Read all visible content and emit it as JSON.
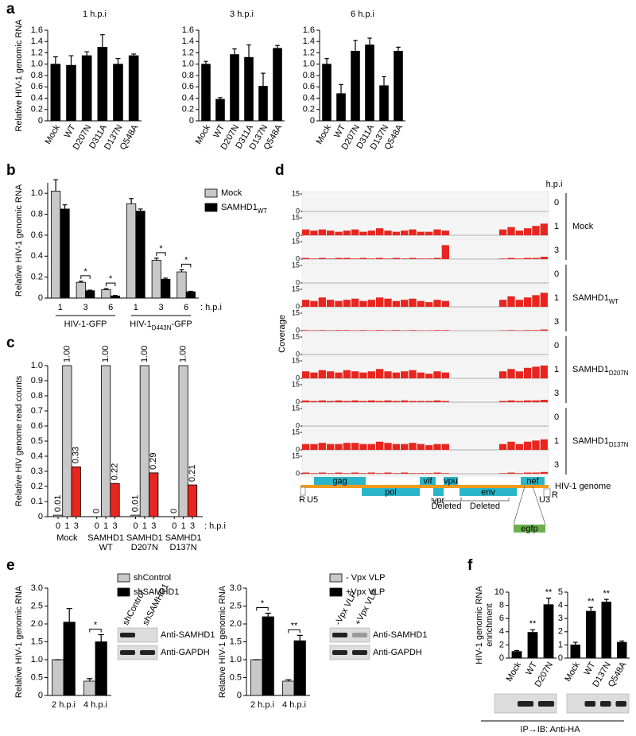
{
  "figure": {
    "panels": [
      "a",
      "b",
      "c",
      "d",
      "e",
      "f"
    ],
    "blot_caption": "IP→IB: Anti-HA"
  },
  "chart_data": [
    {
      "type": "bar",
      "title": "1 h.p.i",
      "ylabel": "Relative HIV-1 genomic RNA",
      "categories": [
        "Mock",
        "WT",
        "D207N",
        "D311A",
        "D137N",
        "Q548A"
      ],
      "values": [
        1.0,
        0.98,
        1.15,
        1.3,
        1.0,
        1.15
      ],
      "errors": [
        0.13,
        0.17,
        0.07,
        0.22,
        0.1,
        0.03
      ],
      "color": "#000000",
      "ylim": [
        0,
        1.6
      ],
      "yticks": [
        0,
        0.2,
        0.4,
        0.6,
        0.8,
        {
          "value": 1,
          "label": "1.0"
        },
        1.2,
        1.4,
        1.6
      ]
    },
    {
      "type": "bar",
      "title": "3 h.p.i",
      "categories": [
        "Mock",
        "WT",
        "D207N",
        "D311A",
        "D137N",
        "Q548A"
      ],
      "values": [
        1.0,
        0.38,
        1.17,
        1.12,
        0.61,
        1.28
      ],
      "errors": [
        0.05,
        0.03,
        0.1,
        0.22,
        0.23,
        0.05
      ],
      "color": "#000000",
      "ylim": [
        0,
        1.6
      ],
      "yticks": [
        0,
        0.2,
        0.4,
        0.6,
        0.8,
        {
          "value": 1,
          "label": "1.0"
        },
        1.2,
        1.4,
        1.6
      ]
    },
    {
      "type": "bar",
      "title": "6 h.p.i",
      "categories": [
        "Mock",
        "WT",
        "D207N",
        "D311A",
        "D137N",
        "Q548A"
      ],
      "values": [
        1.0,
        0.48,
        1.23,
        1.34,
        0.62,
        1.23
      ],
      "errors": [
        0.1,
        0.16,
        0.19,
        0.12,
        0.16,
        0.07
      ],
      "color": "#000000",
      "ylim": [
        0,
        1.6
      ],
      "yticks": [
        0,
        0.2,
        0.4,
        0.6,
        0.8,
        {
          "value": 1,
          "label": "1.0"
        },
        1.2,
        1.4,
        1.6
      ]
    },
    {
      "type": "grouped_bar",
      "ylabel": "Relative HIV-1 genomic RNA",
      "categories": [
        "1",
        "3",
        "6",
        "1",
        "3",
        "6"
      ],
      "x_suffix": ": h.p.i",
      "groups": [
        "HIV-1-GFP",
        {
          "text": "HIV-1",
          "sub": "D443N",
          "tail": "-GFP"
        }
      ],
      "series": [
        {
          "name": "Mock",
          "color": "#c8c8c8",
          "values": [
            1.02,
            0.15,
            0.08,
            0.9,
            0.36,
            0.25
          ],
          "errors": [
            0.11,
            0.01,
            0.01,
            0.05,
            0.02,
            0.02
          ]
        },
        {
          "name": {
            "text": "SAMHD1",
            "sub": "WT"
          },
          "color": "#000000",
          "values": [
            0.85,
            0.07,
            0.02,
            0.83,
            0.18,
            0.06
          ],
          "errors": [
            0.04,
            0.005,
            0.005,
            0.02,
            0.01,
            0.005
          ]
        }
      ],
      "significance": [
        null,
        "*",
        "*",
        null,
        "*",
        "*"
      ],
      "ylim": [
        0,
        1.1
      ],
      "yticks": [
        0,
        0.2,
        0.4,
        0.6,
        0.8,
        {
          "value": 1,
          "label": "1.0"
        }
      ]
    },
    {
      "type": "bar",
      "ylabel": "Relative HIV genome read counts",
      "categories": [
        "0",
        "1",
        "3",
        "0",
        "1",
        "3",
        "0",
        "1",
        "3",
        "0",
        "1",
        "3"
      ],
      "x_suffix": ": h.p.i",
      "groups": [
        [
          "Mock"
        ],
        [
          "SAMHD1",
          "WT"
        ],
        [
          "SAMHD1",
          "D207N"
        ],
        [
          "SAMHD1",
          "D137N"
        ]
      ],
      "values": [
        0.01,
        1,
        0.33,
        0,
        1,
        0.22,
        0.01,
        1,
        0.29,
        0,
        1,
        0.21
      ],
      "value_labels": [
        "0.01",
        "1.00",
        "0.33",
        "0",
        "1.00",
        "0.22",
        "0.01",
        "1.00",
        "0.29",
        "0",
        "1.00",
        "0.21"
      ],
      "colors": [
        "#c8c8c8",
        "#c8c8c8",
        "#e8251f",
        "#c8c8c8",
        "#c8c8c8",
        "#e8251f",
        "#c8c8c8",
        "#c8c8c8",
        "#e8251f",
        "#c8c8c8",
        "#c8c8c8",
        "#e8251f"
      ],
      "ylim": [
        0,
        1
      ],
      "yticks": [
        0,
        0.1,
        0.2,
        0.3,
        0.4,
        0.5,
        0.6,
        0.7,
        0.8,
        0.9,
        {
          "value": 1,
          "label": "1.0"
        }
      ]
    },
    {
      "type": "coverage",
      "ylabel": "Coverage",
      "hpi_header": "h.p.i",
      "color": "#e8251f",
      "ylim": [
        0,
        15
      ],
      "yticks": [
        0,
        15
      ],
      "track_groups": [
        "Mock",
        {
          "text": "SAMHD1",
          "sub": "WT"
        },
        {
          "text": "SAMHD1",
          "sub": "D207N"
        },
        {
          "text": "SAMHD1",
          "sub": "D137N"
        }
      ],
      "track_labels": [
        "0",
        "1",
        "3",
        "0",
        "1",
        "3",
        "0",
        "1",
        "3",
        "0",
        "1",
        "3"
      ],
      "tracks": [
        [
          0,
          0,
          0,
          0,
          0,
          0,
          0,
          0,
          0,
          0,
          0,
          0,
          0,
          0,
          0,
          0,
          0,
          0,
          0,
          0,
          0,
          0,
          0,
          0,
          0,
          0,
          0,
          0,
          0,
          0
        ],
        [
          5,
          4,
          5,
          4,
          3,
          4,
          5,
          3,
          4,
          6,
          4,
          3,
          4,
          5,
          3,
          3,
          5,
          4,
          0,
          0,
          0,
          0,
          0,
          0,
          5,
          7,
          4,
          6,
          8,
          10
        ],
        [
          1,
          0.5,
          1,
          0.5,
          1,
          1,
          0.5,
          1,
          0.5,
          1,
          0.5,
          1,
          0.5,
          1,
          0.5,
          0.5,
          1,
          12,
          0,
          0,
          0,
          0,
          0,
          0,
          0.5,
          1,
          0.5,
          1,
          1,
          2
        ],
        [
          0,
          0,
          0,
          0,
          0,
          0,
          0,
          0,
          0,
          0,
          0,
          0,
          0,
          0,
          0,
          0,
          0,
          0,
          0,
          0,
          0,
          0,
          0,
          0,
          0,
          0,
          0,
          0,
          0,
          0
        ],
        [
          6,
          5,
          8,
          6,
          5,
          6,
          7,
          5,
          6,
          8,
          7,
          5,
          6,
          7,
          5,
          4,
          6,
          5,
          0,
          0,
          0,
          0,
          0,
          0,
          6,
          9,
          6,
          8,
          10,
          12
        ],
        [
          0.5,
          0.3,
          0.5,
          0.3,
          0.5,
          0.5,
          0.3,
          0.5,
          0.3,
          0.5,
          0.3,
          0.5,
          0.3,
          0.5,
          0.3,
          0.3,
          0.5,
          0.5,
          0,
          0,
          0,
          0,
          0,
          0,
          0.3,
          0.5,
          0.3,
          0.5,
          0.5,
          1
        ],
        [
          0,
          0,
          0,
          0,
          0,
          0,
          0,
          0,
          0,
          0,
          0,
          0,
          0,
          0,
          0,
          0,
          0,
          0,
          0,
          0,
          0,
          0,
          0,
          0,
          0,
          0,
          0,
          0,
          0,
          0
        ],
        [
          6,
          5,
          7,
          6,
          5,
          7,
          6,
          5,
          6,
          8,
          6,
          5,
          6,
          7,
          5,
          4,
          6,
          5,
          0,
          0,
          0,
          0,
          0,
          0,
          6,
          8,
          6,
          9,
          10,
          11
        ],
        [
          1.5,
          1,
          1.5,
          1,
          1.5,
          1,
          1.5,
          1,
          1.5,
          1,
          1.5,
          1,
          1.5,
          1,
          1,
          1,
          1.5,
          1,
          0,
          0,
          0,
          0,
          0,
          0,
          1,
          1.5,
          1,
          1.5,
          1.5,
          2
        ],
        [
          0,
          0,
          0,
          0,
          0,
          0,
          0,
          0,
          0,
          0,
          0,
          0,
          0,
          0,
          0,
          0,
          0,
          0,
          0,
          0,
          0,
          0,
          0,
          0,
          0,
          0,
          0,
          0,
          0,
          0
        ],
        [
          5,
          5,
          6,
          5,
          5,
          6,
          6,
          5,
          5,
          7,
          6,
          5,
          5,
          6,
          5,
          4,
          5,
          5,
          0,
          0,
          0,
          0,
          0,
          0,
          5,
          7,
          5,
          7,
          8,
          9
        ],
        [
          1,
          0.5,
          1,
          0.5,
          1,
          0.5,
          1,
          0.5,
          1,
          0.5,
          1,
          0.5,
          1,
          0.5,
          0.5,
          0.5,
          1,
          0.5,
          0,
          0,
          0,
          0,
          0,
          0,
          0.5,
          1,
          0.5,
          1,
          1,
          1.5
        ]
      ],
      "genes": [
        "gag",
        "pol",
        "vif",
        "vpr",
        "vpu",
        "env",
        "nef",
        "egfp"
      ],
      "ltr_labels": [
        "R",
        "U5",
        "U3",
        "R"
      ],
      "deletion_labels": [
        "Deleted",
        "Deleted"
      ],
      "genome_label": "HIV-1 genome"
    },
    {
      "type": "grouped_bar",
      "ylabel": "Relative HIV-1 genomic RNA",
      "categories": [
        "2 h.p.i",
        "4 h.p.i"
      ],
      "series": [
        {
          "name": "shControl",
          "color": "#c8c8c8",
          "values": [
            1,
            0.4
          ],
          "errors": [
            0,
            0.07
          ]
        },
        {
          "name": "shSAMHD1",
          "color": "#000000",
          "values": [
            2.05,
            1.5
          ],
          "errors": [
            0.38,
            0.2
          ]
        }
      ],
      "significance": [
        null,
        "*"
      ],
      "ylim": [
        0,
        3
      ],
      "yticks": [
        0,
        0.5,
        {
          "value": 1,
          "label": "1.0"
        },
        1.5,
        {
          "value": 2,
          "label": "2.0"
        },
        2.5,
        {
          "value": 3,
          "label": "3.0"
        }
      ],
      "blot_lanes": [
        "shControl",
        "shSAMHD1"
      ],
      "blot_rows": [
        "Anti-SAMHD1",
        "Anti-GAPDH"
      ]
    },
    {
      "type": "grouped_bar",
      "ylabel": "Relative HIV-1 genomic RNA",
      "categories": [
        "2 h.p.i",
        "4 h.p.i"
      ],
      "series": [
        {
          "name": "- Vpx VLP",
          "color": "#c8c8c8",
          "values": [
            1,
            0.4
          ],
          "errors": [
            0,
            0.04
          ]
        },
        {
          "name": "+Vpx VLP",
          "color": "#000000",
          "values": [
            2.2,
            1.53
          ],
          "errors": [
            0.1,
            0.15
          ]
        }
      ],
      "significance": [
        "*",
        "**"
      ],
      "ylim": [
        0,
        3
      ],
      "yticks": [
        0,
        0.5,
        {
          "value": 1,
          "label": "1.0"
        },
        1.5,
        {
          "value": 2,
          "label": "2.0"
        },
        2.5,
        {
          "value": 3,
          "label": "3.0"
        }
      ],
      "blot_lanes": [
        "-Vpx VLP",
        "+Vpx VLP"
      ],
      "blot_rows": [
        "Anti-SAMHD1",
        "Anti-GAPDH"
      ]
    },
    {
      "type": "bar",
      "ylabel": [
        "HIV-1 genomic RNA",
        "enrichment"
      ],
      "categories": [
        "Mock",
        "WT",
        "D207N"
      ],
      "values": [
        1,
        3.9,
        8.1
      ],
      "errors": [
        0.15,
        0.4,
        1.0
      ],
      "significance": [
        null,
        "**",
        "**"
      ],
      "color": "#000000",
      "ylim": [
        0,
        10
      ],
      "yticks": [
        0,
        2,
        4,
        6,
        8,
        10
      ]
    },
    {
      "type": "bar",
      "categories": [
        "Mock",
        "WT",
        "D137N",
        "Q548A"
      ],
      "values": [
        1,
        3.55,
        4.25,
        1.2
      ],
      "errors": [
        0.2,
        0.3,
        0.2,
        0.1
      ],
      "significance": [
        null,
        "**",
        "**",
        null
      ],
      "color": "#000000",
      "ylim": [
        0,
        5
      ],
      "yticks": [
        0,
        1,
        2,
        3,
        4,
        5
      ]
    }
  ]
}
